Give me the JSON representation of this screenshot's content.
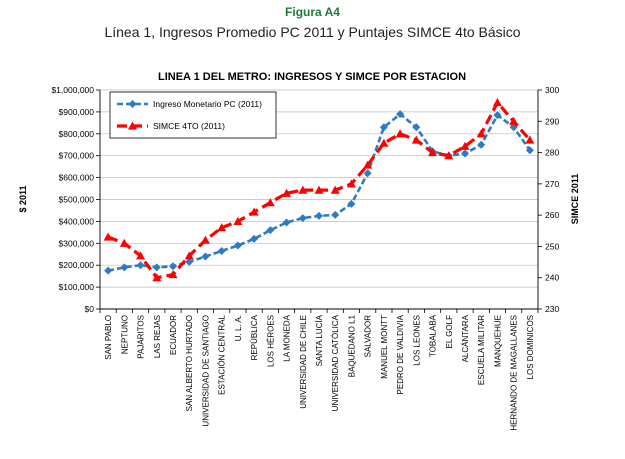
{
  "figure": {
    "label": "Figura A4",
    "title": "Línea 1, Ingresos Promedio PC 2011 y Puntajes SIMCE 4to Básico"
  },
  "chart_data": {
    "type": "line",
    "title": "LINEA 1 DEL METRO: INGRESOS Y SIMCE POR ESTACION",
    "ylabel_left": "$ 2011",
    "ylabel_right": "SIMCE 2011",
    "ylim_left": [
      0,
      1000000
    ],
    "ylim_right": [
      230,
      300
    ],
    "left_ticks": [
      {
        "value": 0,
        "label": "$0"
      },
      {
        "value": 100000,
        "label": "$100,000"
      },
      {
        "value": 200000,
        "label": "$200,000"
      },
      {
        "value": 300000,
        "label": "$300,000"
      },
      {
        "value": 400000,
        "label": "$400,000"
      },
      {
        "value": 500000,
        "label": "$500,000"
      },
      {
        "value": 600000,
        "label": "$600,000"
      },
      {
        "value": 700000,
        "label": "$700,000"
      },
      {
        "value": 800000,
        "label": "$800,000"
      },
      {
        "value": 900000,
        "label": "$900,000"
      },
      {
        "value": 1000000,
        "label": "$1,000,000"
      }
    ],
    "right_ticks": [
      {
        "value": 230,
        "label": "230"
      },
      {
        "value": 240,
        "label": "240"
      },
      {
        "value": 250,
        "label": "250"
      },
      {
        "value": 260,
        "label": "260"
      },
      {
        "value": 270,
        "label": "270"
      },
      {
        "value": 280,
        "label": "280"
      },
      {
        "value": 290,
        "label": "290"
      },
      {
        "value": 300,
        "label": "300"
      }
    ],
    "categories": [
      "SAN PABLO",
      "NEPTUNO",
      "PAJARITOS",
      "LAS REJAS",
      "ECUADOR",
      "SAN ALBERTO HURTADO",
      "UNIVERSIDAD DE SANTIAGO",
      "ESTACIÓN CENTRAL",
      "U. L. A.",
      "REPÚBLICA",
      "LOS HÉROES",
      "LA MONEDA",
      "UNIVERSIDAD DE CHILE",
      "SANTA LUCÍA",
      "UNIVERSIDAD CATÓLICA",
      "BAQUEDANO L1",
      "SALVADOR",
      "MANUEL MONTT",
      "PEDRO DE VALDIVIA",
      "LOS LEONES",
      "TOBALABA",
      "EL GOLF",
      "ALCÁNTARA",
      "ESCUELA MILITAR",
      "MANQUEHUE",
      "HERNANDO DE MAGALLANES",
      "LOS DOMINICOS"
    ],
    "legend_position": "top-left",
    "series": [
      {
        "name": "Ingreso Monetario PC (2011)",
        "axis": "left",
        "color": "#2e7bc4",
        "values": [
          175000,
          190000,
          200000,
          190000,
          195000,
          215000,
          240000,
          265000,
          290000,
          320000,
          360000,
          395000,
          415000,
          425000,
          430000,
          480000,
          620000,
          830000,
          890000,
          830000,
          720000,
          700000,
          710000,
          750000,
          885000,
          830000,
          725000
        ]
      },
      {
        "name": "SIMCE 4TO (2011)",
        "axis": "right",
        "color": "#ff0000",
        "values": [
          253,
          251,
          247,
          240,
          241,
          247,
          252,
          256,
          258,
          261,
          264,
          267,
          268,
          268,
          268,
          270,
          276,
          283,
          286,
          284,
          280,
          279,
          282,
          286,
          296,
          290,
          284
        ]
      }
    ]
  }
}
